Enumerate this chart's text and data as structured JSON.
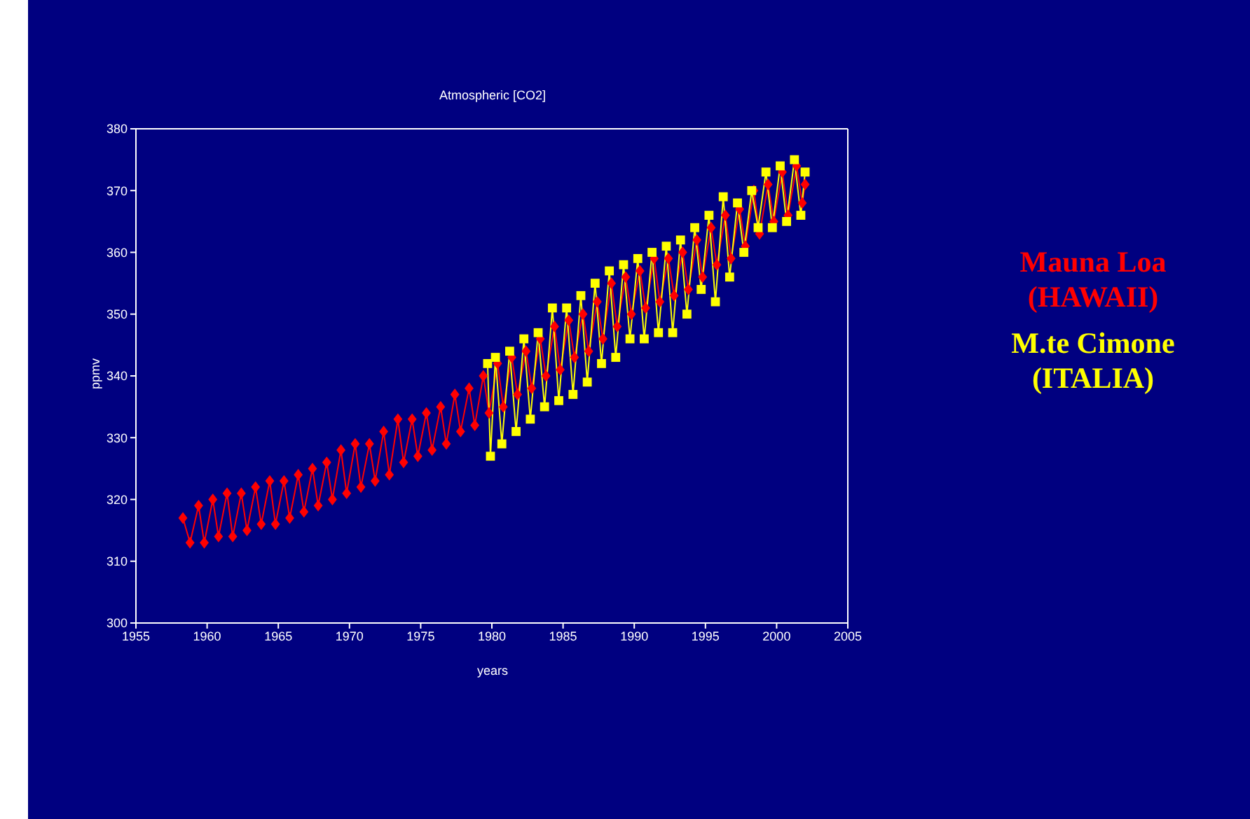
{
  "chart_data": {
    "type": "line",
    "title": "Atmospheric [CO2]",
    "xlabel": "years",
    "ylabel": "ppmv",
    "xlim": [
      1955,
      2005
    ],
    "xticks": [
      1955,
      1960,
      1965,
      1970,
      1975,
      1980,
      1985,
      1990,
      1995,
      2000,
      2005
    ],
    "ylim": [
      300,
      380
    ],
    "yticks": [
      300,
      310,
      320,
      330,
      340,
      350,
      360,
      370,
      380
    ],
    "legend": "right",
    "series": [
      {
        "name": "Mauna Loa (HAWAII)",
        "color": "#ff0000",
        "marker": "diamond",
        "x": [
          1958.3,
          1958.8,
          1959.4,
          1959.8,
          1960.4,
          1960.8,
          1961.4,
          1961.8,
          1962.4,
          1962.8,
          1963.4,
          1963.8,
          1964.4,
          1964.8,
          1965.4,
          1965.8,
          1966.4,
          1966.8,
          1967.4,
          1967.8,
          1968.4,
          1968.8,
          1969.4,
          1969.8,
          1970.4,
          1970.8,
          1971.4,
          1971.8,
          1972.4,
          1972.8,
          1973.4,
          1973.8,
          1974.4,
          1974.8,
          1975.4,
          1975.8,
          1976.4,
          1976.8,
          1977.4,
          1977.8,
          1978.4,
          1978.8,
          1979.4,
          1979.8,
          1980.4,
          1980.8,
          1981.4,
          1981.8,
          1982.4,
          1982.8,
          1983.4,
          1983.8,
          1984.4,
          1984.8,
          1985.4,
          1985.8,
          1986.4,
          1986.8,
          1987.4,
          1987.8,
          1988.4,
          1988.8,
          1989.4,
          1989.8,
          1990.4,
          1990.8,
          1991.4,
          1991.8,
          1992.4,
          1992.8,
          1993.4,
          1993.8,
          1994.4,
          1994.8,
          1995.4,
          1995.8,
          1996.4,
          1996.8,
          1997.4,
          1997.8,
          1998.4,
          1998.8,
          1999.4,
          1999.8,
          2000.4,
          2000.8,
          2001.4,
          2001.8,
          2002.0
        ],
        "values": [
          317,
          313,
          319,
          313,
          320,
          314,
          321,
          314,
          321,
          315,
          322,
          316,
          323,
          316,
          323,
          317,
          324,
          318,
          325,
          319,
          326,
          320,
          328,
          321,
          329,
          322,
          329,
          323,
          331,
          324,
          333,
          326,
          333,
          327,
          334,
          328,
          335,
          329,
          337,
          331,
          338,
          332,
          340,
          334,
          342,
          335,
          343,
          337,
          344,
          338,
          346,
          340,
          348,
          341,
          349,
          343,
          350,
          344,
          352,
          346,
          355,
          348,
          356,
          350,
          357,
          351,
          359,
          352,
          359,
          353,
          360,
          354,
          362,
          356,
          364,
          358,
          366,
          359,
          367,
          361,
          370,
          363,
          371,
          365,
          373,
          366,
          374,
          368,
          371
        ]
      },
      {
        "name": "M.te Cimone (ITALIA)",
        "color": "#ffff00",
        "marker": "square",
        "x": [
          1979.7,
          1979.9,
          1980.25,
          1980.7,
          1981.25,
          1981.7,
          1982.25,
          1982.7,
          1983.25,
          1983.7,
          1984.25,
          1984.7,
          1985.25,
          1985.7,
          1986.25,
          1986.7,
          1987.25,
          1987.7,
          1988.25,
          1988.7,
          1989.25,
          1989.7,
          1990.25,
          1990.7,
          1991.25,
          1991.7,
          1992.25,
          1992.7,
          1993.25,
          1993.7,
          1994.25,
          1994.7,
          1995.25,
          1995.7,
          1996.25,
          1996.7,
          1997.25,
          1997.7,
          1998.25,
          1998.7,
          1999.25,
          1999.7,
          2000.25,
          2000.7,
          2001.25,
          2001.7,
          2002.0
        ],
        "values": [
          342,
          327,
          343,
          329,
          344,
          331,
          346,
          333,
          347,
          335,
          351,
          336,
          351,
          337,
          353,
          339,
          355,
          342,
          357,
          343,
          358,
          346,
          359,
          346,
          360,
          347,
          361,
          347,
          362,
          350,
          364,
          354,
          366,
          352,
          369,
          356,
          368,
          360,
          370,
          364,
          373,
          364,
          374,
          365,
          375,
          366,
          373
        ]
      }
    ]
  }
}
